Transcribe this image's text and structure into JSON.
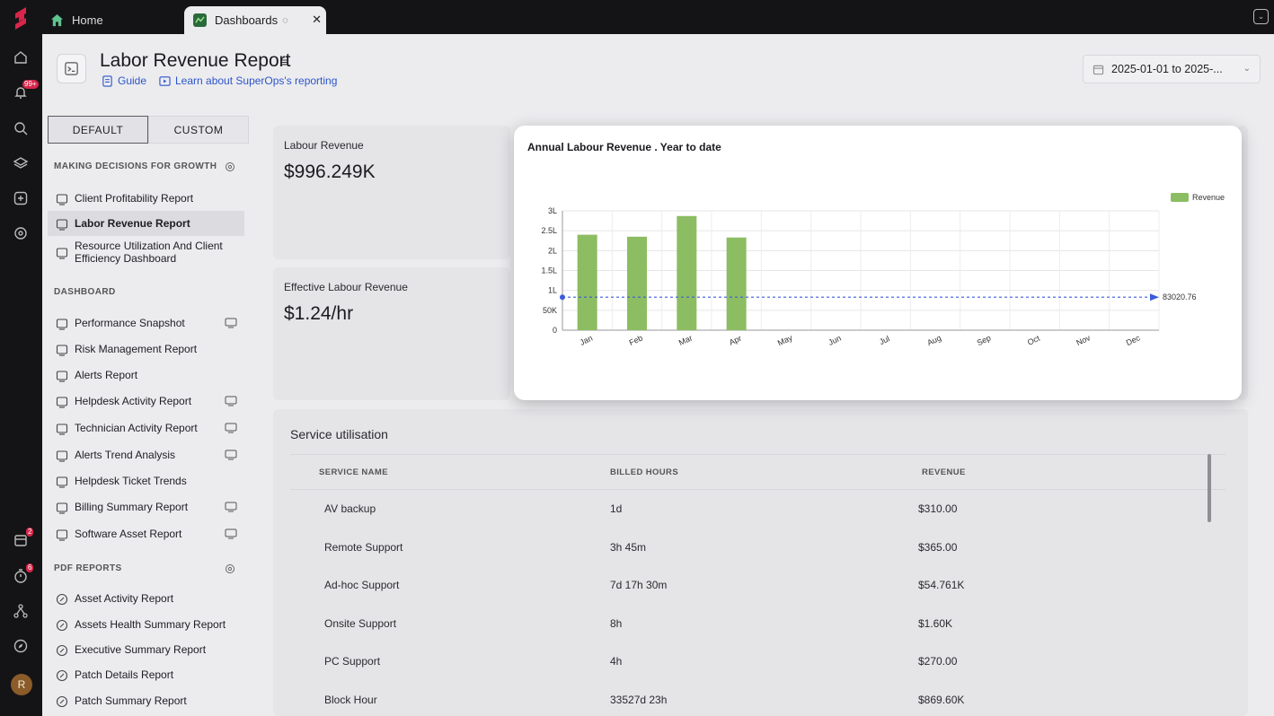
{
  "tabs": {
    "home": "Home",
    "dashboards": "Dashboards"
  },
  "rail": {
    "alerts_badge": "99+",
    "calendar_badge": "2",
    "tasks_badge": "6",
    "avatar_initial": "R"
  },
  "header": {
    "title": "Labor Revenue Report",
    "guide": "Guide",
    "learn": "Learn about SuperOps's reporting",
    "date_range": "2025-01-01 to 2025-..."
  },
  "panel": {
    "toggle": [
      "DEFAULT",
      "CUSTOM"
    ],
    "sections": [
      {
        "title": "MAKING DECISIONS FOR GROWTH",
        "items": [
          {
            "label": "Client Profitability Report"
          },
          {
            "label": "Labor Revenue Report",
            "selected": true
          },
          {
            "label": "Resource Utilization And Client Efficiency Dashboard"
          }
        ]
      },
      {
        "title": "DASHBOARD",
        "items": [
          {
            "label": "Performance Snapshot",
            "tv": true
          },
          {
            "label": "Risk Management Report"
          },
          {
            "label": "Alerts Report"
          },
          {
            "label": "Helpdesk Activity Report",
            "tv": true
          },
          {
            "label": "Technician Activity Report",
            "tv": true
          },
          {
            "label": "Alerts Trend Analysis",
            "tv": true
          },
          {
            "label": "Helpdesk Ticket Trends"
          },
          {
            "label": "Billing Summary Report",
            "tv": true
          },
          {
            "label": "Software Asset Report",
            "tv": true
          }
        ]
      },
      {
        "title": "PDF REPORTS",
        "items": [
          {
            "label": "Asset Activity Report"
          },
          {
            "label": "Assets Health Summary Report"
          },
          {
            "label": "Executive Summary Report"
          },
          {
            "label": "Patch Details Report"
          },
          {
            "label": "Patch Summary Report"
          }
        ]
      }
    ]
  },
  "cards": {
    "labour_revenue": {
      "label": "Labour Revenue",
      "value": "$996.249K"
    },
    "effective_revenue": {
      "label": "Effective Labour Revenue",
      "value": "$1.24/hr"
    }
  },
  "service": {
    "title": "Service utilisation",
    "columns": [
      "SERVICE NAME",
      "BILLED HOURS",
      "REVENUE"
    ],
    "rows": [
      [
        "AV backup",
        "1d",
        "$310.00"
      ],
      [
        "Remote Support",
        "3h 45m",
        "$365.00"
      ],
      [
        "Ad-hoc Support",
        "7d 17h 30m",
        "$54.761K"
      ],
      [
        "Onsite Support",
        "8h",
        "$1.60K"
      ],
      [
        "PC Support",
        "4h",
        "$270.00"
      ],
      [
        "Block Hour",
        "33527d 23h",
        "$869.60K"
      ]
    ]
  },
  "chart_data": {
    "type": "bar",
    "title": "Annual Labour Revenue . Year to date",
    "categories": [
      "Jan",
      "Feb",
      "Mar",
      "Apr",
      "May",
      "Jun",
      "Jul",
      "Aug",
      "Sep",
      "Oct",
      "Nov",
      "Dec"
    ],
    "series": [
      {
        "name": "Revenue",
        "values": [
          240000,
          235000,
          287000,
          233000,
          null,
          null,
          null,
          null,
          null,
          null,
          null,
          null
        ]
      }
    ],
    "y_ticks": [
      "0",
      "50K",
      "1L",
      "1.5L",
      "2L",
      "2.5L",
      "3L"
    ],
    "ylim": [
      0,
      300000
    ],
    "reference_line": {
      "value": 83020.76,
      "label": "83020.76"
    },
    "legend_position": "top-right",
    "bar_color": "#8cbd62",
    "grid": true
  }
}
